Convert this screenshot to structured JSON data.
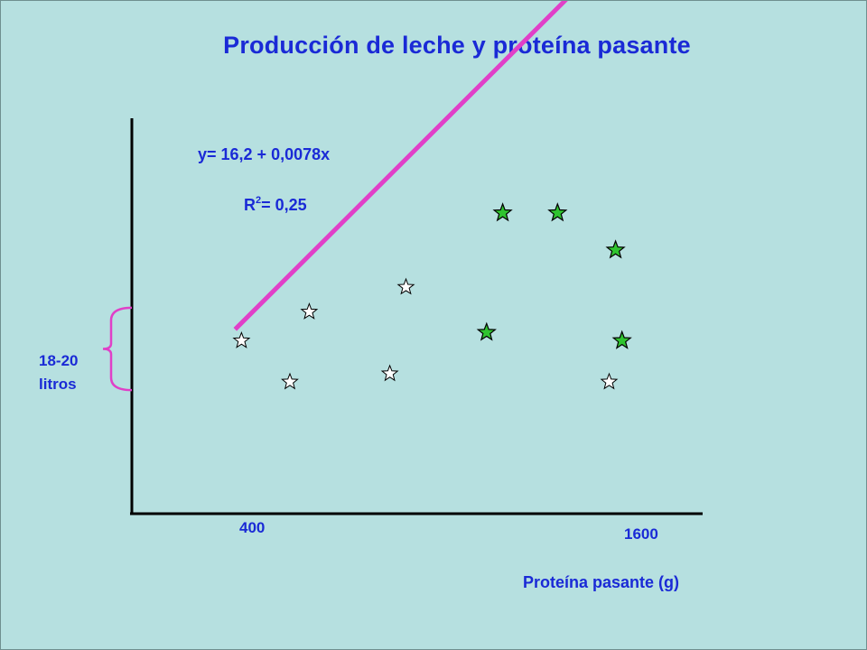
{
  "chart_data": {
    "type": "scatter",
    "title": "Producción de leche y proteína pasante",
    "xlabel": "Proteína pasante (g)",
    "ylabel": "",
    "xticks": [
      "400",
      "1600"
    ],
    "xlim": [
      100,
      1870
    ],
    "ylim": [
      15,
      24.6
    ],
    "grid": false,
    "legend": "none",
    "equation": "y= 16,2 + 0,0078x",
    "r2": {
      "prefix": "R",
      "sup": "2",
      "suffix": "= 0,25"
    },
    "y_range_annotation": {
      "lines": [
        "18-20",
        "litros"
      ],
      "from": 18,
      "to": 20
    },
    "series": [
      {
        "marker": "open-star",
        "color": "#ffffff",
        "points": [
          {
            "x": 440,
            "y": 19.2
          },
          {
            "x": 590,
            "y": 18.2
          },
          {
            "x": 650,
            "y": 19.9
          },
          {
            "x": 900,
            "y": 18.4
          },
          {
            "x": 950,
            "y": 20.5
          },
          {
            "x": 1580,
            "y": 18.2
          }
        ]
      },
      {
        "marker": "filled-star",
        "color": "#2fc42f",
        "points": [
          {
            "x": 1200,
            "y": 19.4
          },
          {
            "x": 1250,
            "y": 22.3
          },
          {
            "x": 1420,
            "y": 22.3
          },
          {
            "x": 1600,
            "y": 21.4
          },
          {
            "x": 1620,
            "y": 19.2
          }
        ]
      }
    ],
    "trendline": {
      "color": "#e040c8",
      "x": [
        420,
        1630
      ],
      "intercept": 16.2,
      "slope": 0.0078
    }
  },
  "colors": {
    "background": "#b6e0e0",
    "text": "#1a2ad6",
    "axis": "#000000",
    "brace": "#e040c8"
  }
}
